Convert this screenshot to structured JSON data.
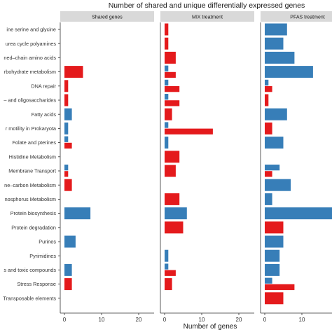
{
  "chart_data": {
    "type": "bar",
    "orientation": "horizontal",
    "title": "Number of shared and unique differentially expressed genes",
    "xlabel": "Number of genes",
    "ylabel": "",
    "xlim": [
      0,
      30
    ],
    "xticks_labels": [
      "0",
      "10",
      "20",
      "2("
    ],
    "grid": false,
    "colors": {
      "up": "#e41a1c",
      "down": "#377eb8",
      "strip": "#d9d9d9",
      "axis": "#333333"
    },
    "categories": [
      "ine serine and glycine",
      "urea cycle polyamines",
      "ned–chain amino acids",
      "rbohydrate metabolism",
      "DNA repair",
      "– and oligosaccharides",
      "Fatty acids",
      "r motility in Prokaryota",
      "Folate and pterines",
      "Histidine Metabolism",
      "Membrane Transport",
      "ne–carbon Metabolism",
      "nosphorus Metabolism",
      "Protein biosynthesis",
      "Protein degradation",
      "Purines",
      "Pyrimidines",
      "s and toxic compounds",
      "Stress Response",
      "Transposable elements"
    ],
    "panels": [
      {
        "name": "Shared genes",
        "blue": [
          0,
          0,
          0,
          0,
          0,
          0,
          2,
          1,
          1,
          0,
          1,
          0,
          0,
          7,
          0,
          3,
          0,
          2,
          0,
          0
        ],
        "red": [
          0,
          0,
          0,
          5,
          1,
          1,
          0,
          0,
          2,
          0,
          1,
          2,
          0,
          0,
          0,
          0,
          0,
          0,
          2,
          0
        ]
      },
      {
        "name": "MIX treatment",
        "blue": [
          0,
          0,
          0,
          1,
          1,
          1,
          0,
          1,
          1,
          0,
          0,
          0,
          0,
          6,
          0,
          0,
          1,
          1,
          0,
          0
        ],
        "red": [
          1,
          1,
          3,
          3,
          4,
          4,
          2,
          13,
          0,
          4,
          3,
          0,
          4,
          0,
          5,
          0,
          0,
          3,
          2,
          0
        ]
      },
      {
        "name": "PFAS treatment",
        "blue": [
          6,
          5,
          8,
          13,
          1,
          0,
          6,
          0,
          5,
          0,
          4,
          7,
          2,
          30,
          0,
          5,
          4,
          4,
          2,
          0
        ],
        "red": [
          0,
          0,
          0,
          0,
          2,
          1,
          0,
          2,
          0,
          0,
          2,
          0,
          0,
          0,
          5,
          0,
          0,
          0,
          8,
          5
        ]
      }
    ]
  }
}
